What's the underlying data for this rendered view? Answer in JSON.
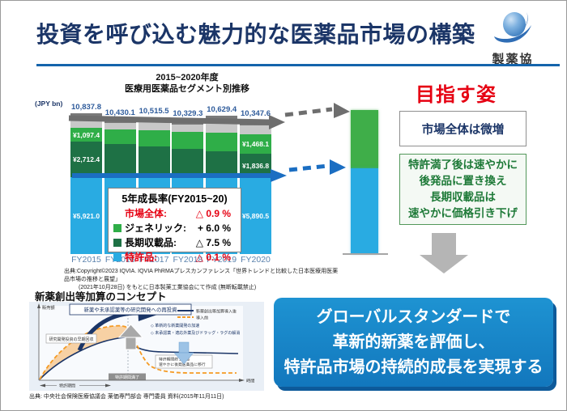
{
  "slide": {
    "title": "投資を呼び込む魅力的な医薬品市場の構築",
    "logo_text": "製薬協"
  },
  "chart": {
    "title_line1": "2015~2020年度",
    "title_line2": "医療用医薬品セグメント別推移",
    "unit_label": "(JPY bn)",
    "source_line1": "出典:Copyright©2023 IQVIA. IQVIA PhRMAプレスカンファレンス「世界トレンドと比較した日本医療用医薬品市場の推移と展望」",
    "source_line2": "(2021年10月28日) をもとに日本製薬工業協会にて作成 (無断転載禁止)"
  },
  "chart_data": {
    "type": "bar",
    "stacked": true,
    "unit": "JPY bn",
    "categories": [
      "FY2015",
      "FY2016",
      "FY2017",
      "FY2018",
      "FY2019",
      "FY2020"
    ],
    "totals": [
      10837.8,
      10430.1,
      10515.5,
      10329.3,
      10629.4,
      10347.6
    ],
    "total_labels": [
      "10,837.8",
      "10,430.1",
      "10,515.5",
      "10,329.3",
      "10,629.4",
      "10,347.6"
    ],
    "series": [
      {
        "key": "patent",
        "name": "特許品",
        "color": "#29abe2",
        "values": [
          5921.0,
          5920,
          5915,
          5910,
          5905,
          5890.5
        ],
        "labels": {
          "FY2015": "¥5,921.0",
          "FY2020": "¥5,890.5"
        }
      },
      {
        "key": "longterm",
        "name": "長期収載品",
        "color": "#1e7145",
        "values": [
          2712.4,
          2530,
          2360,
          2190,
          2010,
          1836.8
        ],
        "labels": {
          "FY2015": "¥2,712.4",
          "FY2020": "¥1,836.8"
        }
      },
      {
        "key": "generic",
        "name": "ジェネリック",
        "color": "#2fae48",
        "values": [
          1097.4,
          1170,
          1250,
          1320,
          1400,
          1468.1
        ],
        "labels": {
          "FY2015": "¥1,097.4",
          "FY2020": "¥1,468.1"
        }
      },
      {
        "key": "other_light",
        "name": "",
        "color": "#c8c8c8",
        "values": [
          660,
          490,
          600,
          550,
          800,
          690
        ]
      },
      {
        "key": "other_dark",
        "name": "",
        "color": "#7a7a7a",
        "values": [
          447,
          320,
          390,
          360,
          514,
          462
        ]
      }
    ]
  },
  "growth_box": {
    "title": "5年成長率(FY2015~20)",
    "rows": [
      {
        "label": "市場全体:",
        "value": "△ 0.9 %",
        "color": "#e60012",
        "square": ""
      },
      {
        "label": "ジェネリック:",
        "value": "+ 6.0 %",
        "color": "#000000",
        "square": "#2fae48"
      },
      {
        "label": "長期収載品:",
        "value": "△ 7.5 %",
        "color": "#000000",
        "square": "#1e7145"
      },
      {
        "label": "特許品:",
        "value": "△ 0.1 %",
        "color": "#e60012",
        "square": "#29abe2"
      }
    ]
  },
  "target": {
    "heading": "目指す姿",
    "box1": "市場全体は微増",
    "box2_lines": [
      "特許満了後は速やかに",
      "後発品に置き換え",
      "長期収載品は",
      "速やかに価格引き下げ"
    ]
  },
  "message": {
    "lines": [
      "グローバルスタンダードで",
      "革新的新薬を評価し、",
      "特許品市場の持続的成長を実現する"
    ]
  },
  "concept": {
    "heading": "新薬創出等加算のコンセプト",
    "y_axis": "販売額",
    "x_axis": "時間",
    "legend_after": "新薬創出等加算導入後",
    "legend_before": "導入前",
    "box_reinvest": "新薬や未承認薬等の研究開発への再投資",
    "box_recover": "研究開発投資の早期回収",
    "bullet1": "◇ 革新的な新薬開発の加速",
    "bullet2": "◇ 未承認薬・適応外薬及びドラッグ・ラグの解消",
    "box_expiry_line1": "特許期間終了後は",
    "box_expiry_line2": "速やかに後発医薬品に移行",
    "axis_box": "特許期間満了",
    "patent_period": "特許期間",
    "source": "出典: 中央社会保険医療協議会 薬価専門部会 専門委員 資料(2015年11月11日)"
  },
  "colors": {
    "title_navy": "#1b3567",
    "rule_blue": "#1464ac",
    "accent_red": "#e60012",
    "patent_blue": "#29abe2",
    "longterm_green": "#1e7145",
    "generic_green": "#2fae48",
    "future_green": "#3fae49",
    "message_blue": "#1277bd",
    "gray_arrow": "#6e6e6e",
    "blue_arrow": "#1b6ec2"
  }
}
